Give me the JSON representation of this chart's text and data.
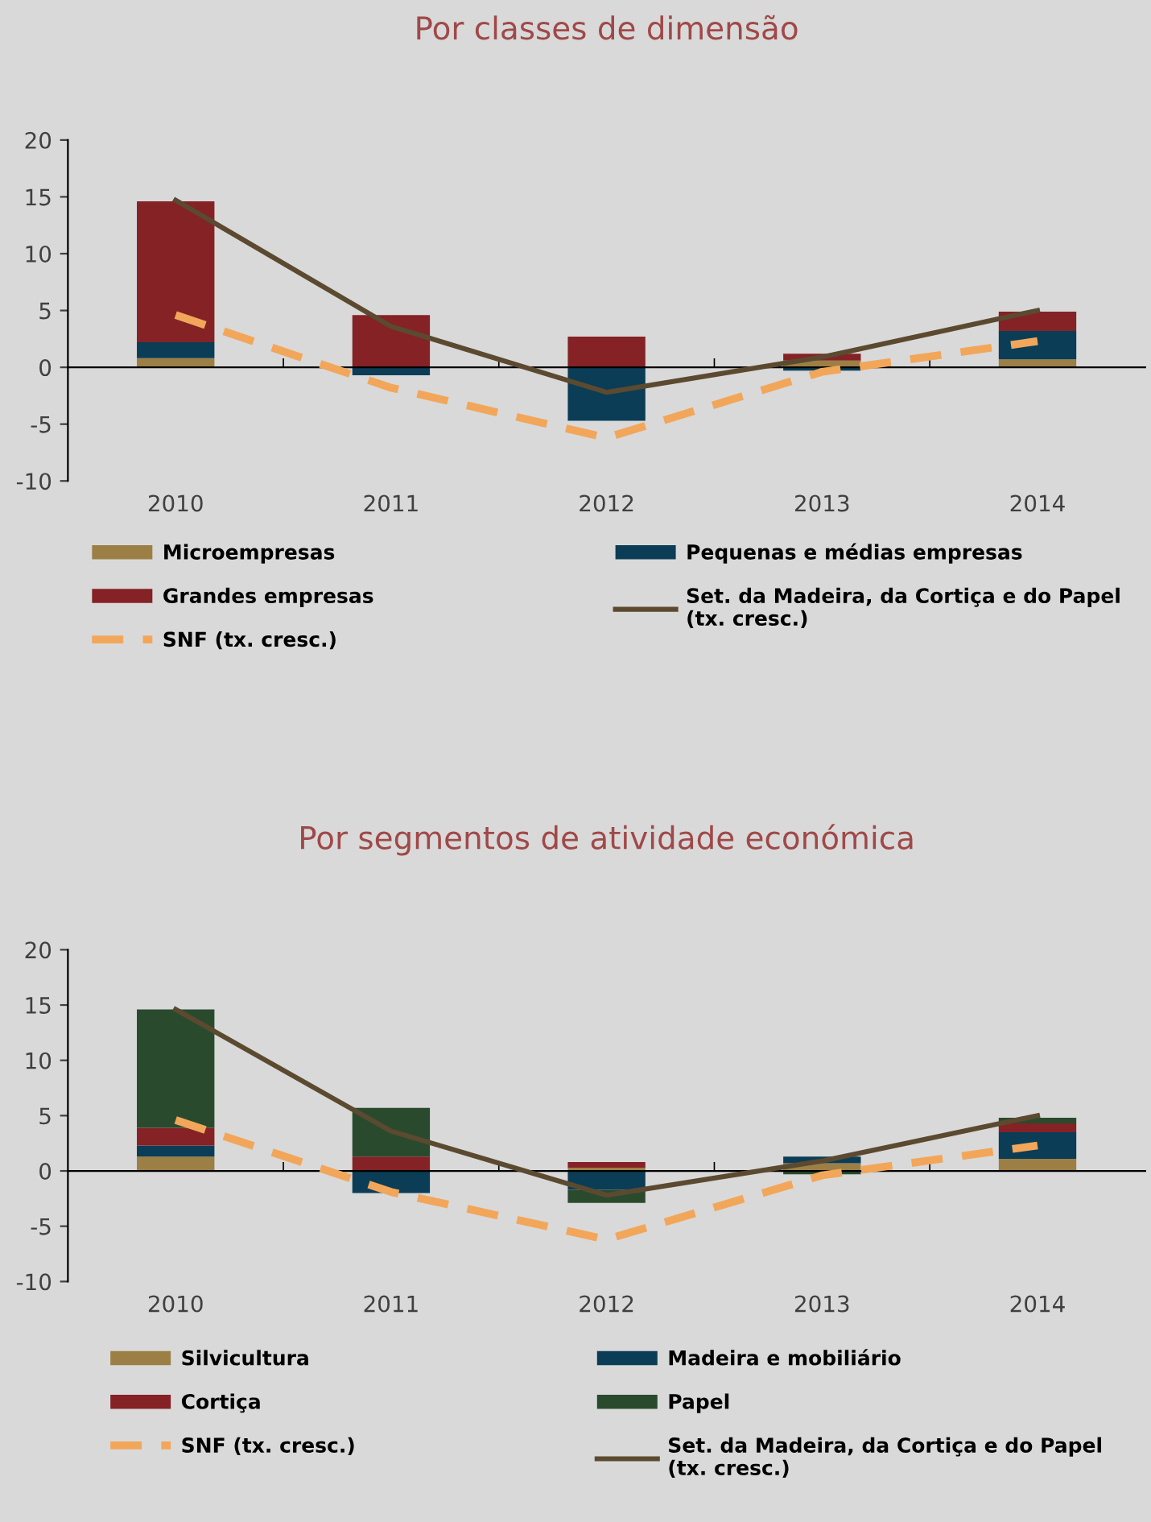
{
  "chart_data": [
    {
      "type": "bar",
      "title": "Por classes de dimensão",
      "stacked": true,
      "categories": [
        "2010",
        "2011",
        "2012",
        "2013",
        "2014"
      ],
      "ylim": [
        -10,
        20
      ],
      "yticks": [
        -10,
        -5,
        0,
        5,
        10,
        15,
        20
      ],
      "legend": "bottom",
      "series": [
        {
          "name": "Microempresas",
          "color": "#9c7f45",
          "values": [
            0.8,
            0,
            0,
            0.6,
            0.7
          ]
        },
        {
          "name": "Pequenas e médias empresas",
          "color": "#0b3d56",
          "values": [
            1.4,
            -0.7,
            -4.7,
            -0.3,
            2.5
          ]
        },
        {
          "name": "Grandes empresas",
          "color": "#842226",
          "values": [
            12.4,
            4.6,
            2.7,
            0.6,
            1.7
          ]
        },
        {
          "name": "Set. da Madeira, da Cortiça e do Papel (tx. cresc.)",
          "type": "line",
          "color": "#5b4a30",
          "line_style": "solid",
          "values": [
            14.7,
            3.6,
            -2.2,
            0.9,
            5.0
          ]
        },
        {
          "name": "SNF (tx. cresc.)",
          "type": "line",
          "color": "#f2a65a",
          "line_style": "dashed",
          "values": [
            4.6,
            -1.8,
            -6.2,
            -0.4,
            2.3
          ]
        }
      ]
    },
    {
      "type": "bar",
      "title": "Por segmentos de atividade económica",
      "stacked": true,
      "categories": [
        "2010",
        "2011",
        "2012",
        "2013",
        "2014"
      ],
      "ylim": [
        -10,
        20
      ],
      "yticks": [
        -10,
        -5,
        0,
        5,
        10,
        15,
        20
      ],
      "legend": "bottom",
      "series": [
        {
          "name": "Silvicultura",
          "color": "#9c7f45",
          "values": [
            1.3,
            0,
            0.3,
            0.7,
            1.1
          ]
        },
        {
          "name": "Madeira e mobiliário",
          "color": "#0b3d56",
          "values": [
            1.0,
            -2.0,
            -1.7,
            0.6,
            2.4
          ]
        },
        {
          "name": "Cortiça",
          "color": "#842226",
          "values": [
            1.6,
            1.3,
            0.5,
            0,
            0.8
          ]
        },
        {
          "name": "Papel",
          "color": "#2a4a2e",
          "values": [
            10.7,
            4.4,
            -1.2,
            -0.3,
            0.5
          ]
        },
        {
          "name": "SNF (tx. cresc.)",
          "type": "line",
          "color": "#f2a65a",
          "line_style": "dashed",
          "values": [
            4.6,
            -1.9,
            -6.2,
            -0.4,
            2.3
          ]
        },
        {
          "name": "Set. da Madeira, da Cortiça e do Papel (tx. cresc.)",
          "type": "line",
          "color": "#5b4a30",
          "line_style": "solid",
          "values": [
            14.6,
            3.6,
            -2.2,
            0.9,
            5.0
          ]
        }
      ]
    }
  ]
}
